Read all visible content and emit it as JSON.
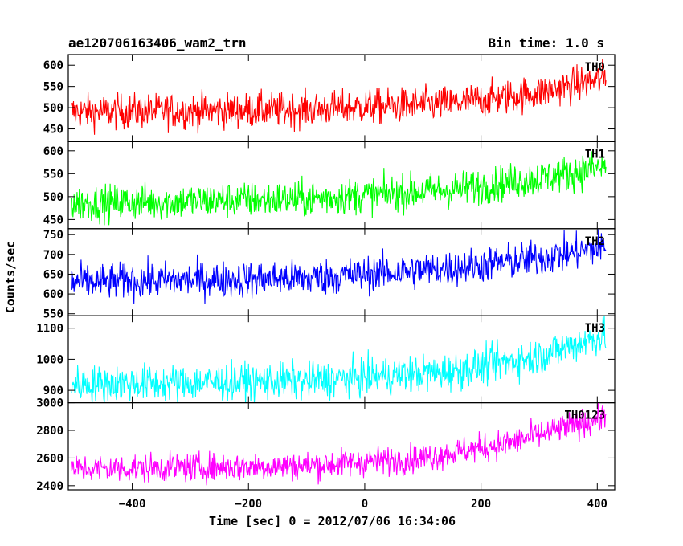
{
  "header": {
    "left_title": "ae120706163406_wam2_trn",
    "right_title": "Bin time: 1.0 s"
  },
  "chart_data": {
    "type": "line",
    "xlabel": "Time [sec] 0 = 2012/07/06 16:34:06",
    "ylabel": "Counts/sec",
    "xlim": [
      -510,
      430
    ],
    "x_ticks": [
      -400,
      -200,
      0,
      200,
      400
    ],
    "x_range_data": [
      -505,
      415
    ],
    "panels": [
      {
        "name": "TH0",
        "color": "#ff0000",
        "ylim": [
          420,
          625
        ],
        "y_ticks": [
          450,
          500,
          550,
          600
        ],
        "trend": [
          [
            -505,
            490
          ],
          [
            -100,
            495
          ],
          [
            150,
            510
          ],
          [
            300,
            535
          ],
          [
            415,
            570
          ]
        ],
        "noise": 38
      },
      {
        "name": "TH1",
        "color": "#00ff00",
        "ylim": [
          430,
          620
        ],
        "y_ticks": [
          450,
          500,
          550,
          600
        ],
        "trend": [
          [
            -505,
            485
          ],
          [
            -100,
            495
          ],
          [
            150,
            515
          ],
          [
            300,
            540
          ],
          [
            415,
            565
          ]
        ],
        "noise": 36
      },
      {
        "name": "TH2",
        "color": "#0000ff",
        "ylim": [
          545,
          765
        ],
        "y_ticks": [
          550,
          600,
          650,
          700,
          750
        ],
        "trend": [
          [
            -505,
            630
          ],
          [
            -100,
            640
          ],
          [
            150,
            665
          ],
          [
            300,
            690
          ],
          [
            415,
            720
          ]
        ],
        "noise": 42
      },
      {
        "name": "TH3",
        "color": "#00ffff",
        "ylim": [
          860,
          1140
        ],
        "y_ticks": [
          900,
          1000,
          1100
        ],
        "trend": [
          [
            -505,
            920
          ],
          [
            -100,
            930
          ],
          [
            150,
            960
          ],
          [
            300,
            1010
          ],
          [
            415,
            1080
          ]
        ],
        "noise": 55
      },
      {
        "name": "TH0123",
        "color": "#ff00ff",
        "ylim": [
          2370,
          3000
        ],
        "y_ticks": [
          2400,
          2600,
          2800,
          3000
        ],
        "trend": [
          [
            -505,
            2520
          ],
          [
            -100,
            2545
          ],
          [
            100,
            2600
          ],
          [
            250,
            2710
          ],
          [
            415,
            2900
          ]
        ],
        "noise": 95
      }
    ]
  }
}
